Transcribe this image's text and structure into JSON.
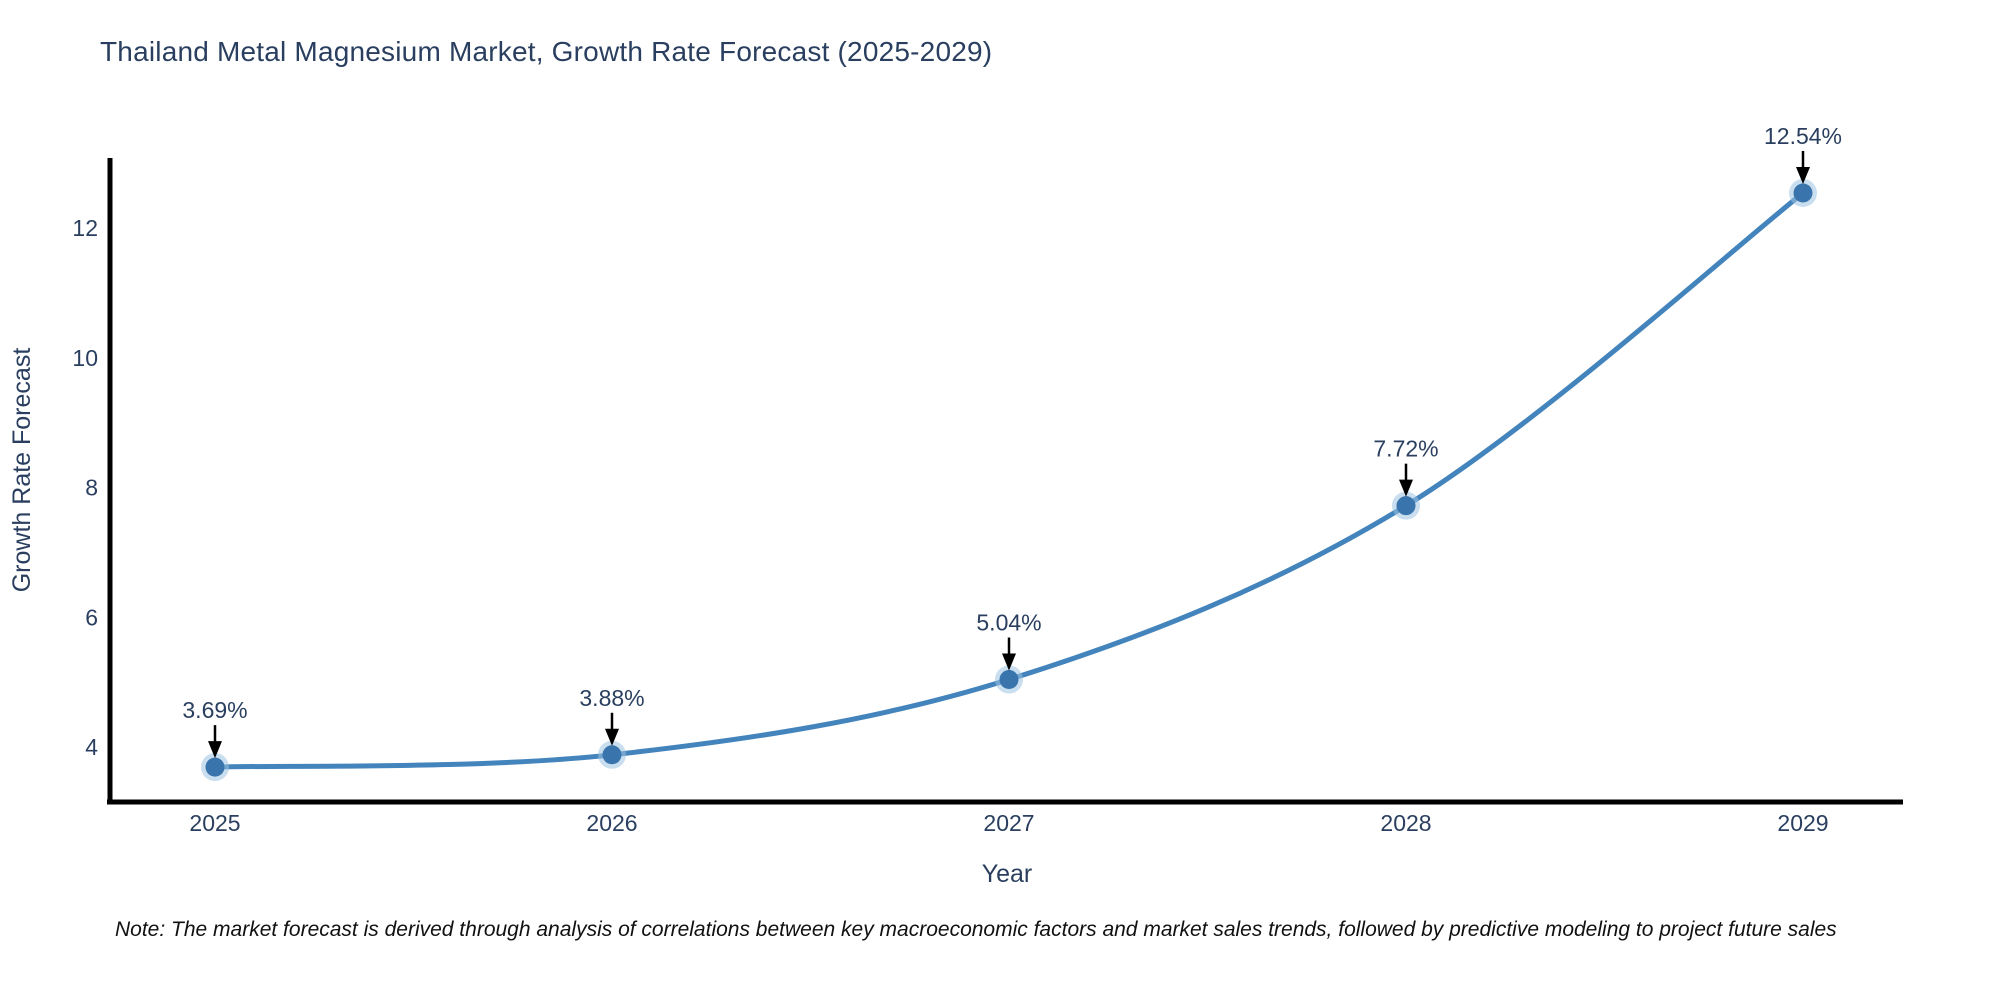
{
  "chart_data": {
    "type": "line",
    "title": "Thailand Metal Magnesium Market, Growth Rate Forecast (2025-2029)",
    "xlabel": "Year",
    "ylabel": "Growth Rate Forecast",
    "x": [
      2025,
      2026,
      2027,
      2028,
      2029
    ],
    "values": [
      3.69,
      3.88,
      5.04,
      7.72,
      12.54
    ],
    "point_labels": [
      "3.69%",
      "3.88%",
      "5.04%",
      "7.72%",
      "12.54%"
    ],
    "series": [
      {
        "name": "Growth Rate Forecast",
        "values": [
          3.69,
          3.88,
          5.04,
          7.72,
          12.54
        ]
      }
    ],
    "yticks": [
      4,
      6,
      8,
      10,
      12
    ],
    "xlim": [
      2024.73,
      2029.25
    ],
    "ylim": [
      3.15,
      13.05
    ],
    "grid": false,
    "legend_position": "none",
    "line_shape": "spline",
    "colors": {
      "line": "#4384bc",
      "marker": "#3a74ad",
      "marker_halo": "#9cc3e0",
      "axis": "#000000",
      "text": "#2a3f5f",
      "annotation_arrow": "#000000"
    }
  },
  "note": "Note: The market forecast is derived through analysis of correlations between key macroeconomic factors and market sales trends, followed by predictive modeling to project future sales"
}
